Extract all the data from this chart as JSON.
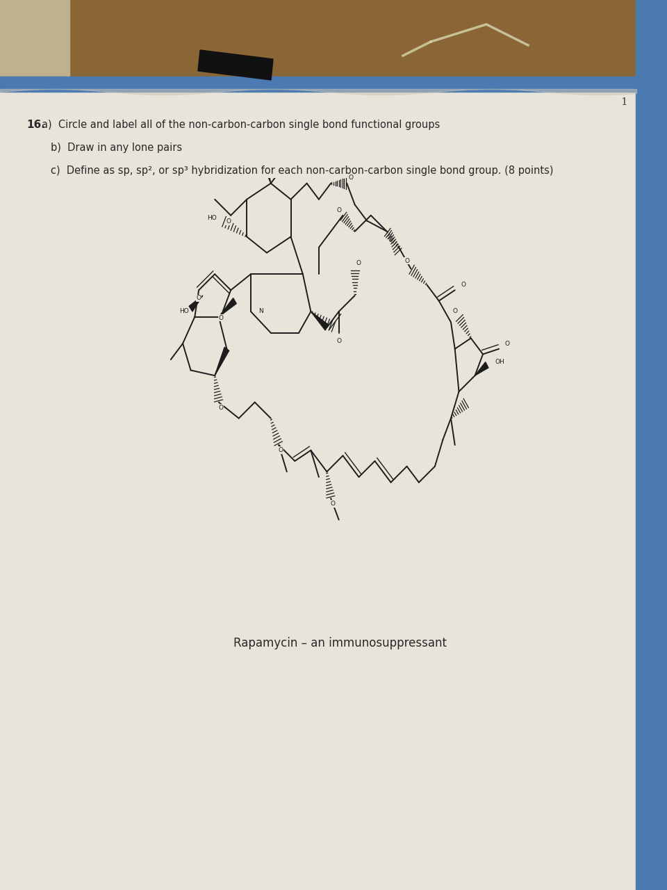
{
  "bg_paper_color": "#e8e4da",
  "bg_wood_color_left": "#c8b898",
  "bg_wood_color_main": "#8a6535",
  "bg_blue_color": "#4a7ab0",
  "text_color": "#282828",
  "line_color": "#1c1c1c",
  "q_number": "16.",
  "q_a": "a)  Circle and label all of the non-carbon-carbon single bond functional groups",
  "q_b": "b)  Draw in any lone pairs",
  "q_c": "c)  Define as sp, sp², or sp³ hybridization for each non-carbon-carbon single bond group. (8 points)",
  "caption": "Rapamycin – an immunosuppressant",
  "page_num": "1"
}
